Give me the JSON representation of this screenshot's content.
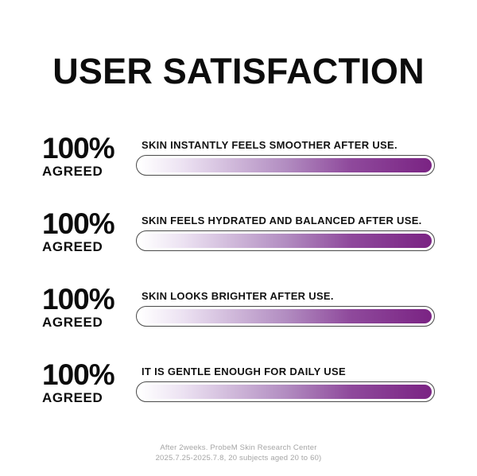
{
  "title": "USER SATISFACTION",
  "colors": {
    "bar_gradient_start": "#ffffff",
    "bar_gradient_mid": "#b28dc1",
    "bar_gradient_end": "#7a2383",
    "bar_border": "#4a4a4a",
    "footer_text": "#a5a5a5",
    "text": "#0c0c0c"
  },
  "rows": [
    {
      "percent": "100%",
      "agreed": "AGREED",
      "statement": "SKIN INSTANTLY FEELS SMOOTHER AFTER USE."
    },
    {
      "percent": "100%",
      "agreed": "AGREED",
      "statement": "SKIN FEELS HYDRATED AND BALANCED AFTER USE."
    },
    {
      "percent": "100%",
      "agreed": "AGREED",
      "statement": "SKIN LOOKS BRIGHTER AFTER USE."
    },
    {
      "percent": "100%",
      "agreed": "AGREED",
      "statement": "IT IS GENTLE ENOUGH FOR DAILY USE"
    }
  ],
  "footer": {
    "line1": "After 2weeks. ProbeM Skin Research Center",
    "line2": "2025.7.25-2025.7.8, 20 subjects aged 20 to 60)"
  },
  "chart_data": {
    "type": "bar",
    "orientation": "horizontal",
    "title": "USER SATISFACTION",
    "categories": [
      "SKIN INSTANTLY FEELS SMOOTHER AFTER USE.",
      "SKIN FEELS HYDRATED AND BALANCED AFTER USE.",
      "SKIN LOOKS BRIGHTER AFTER USE.",
      "IT IS GENTLE ENOUGH FOR DAILY USE"
    ],
    "values": [
      100,
      100,
      100,
      100
    ],
    "value_labels": [
      "100% AGREED",
      "100% AGREED",
      "100% AGREED",
      "100% AGREED"
    ],
    "unit": "% agreed",
    "xlim": [
      0,
      100
    ],
    "legend": false,
    "grid": false,
    "annotation": "After 2weeks. ProbeM Skin Research Center 2025.7.25-2025.7.8, 20 subjects aged 20 to 60)"
  }
}
